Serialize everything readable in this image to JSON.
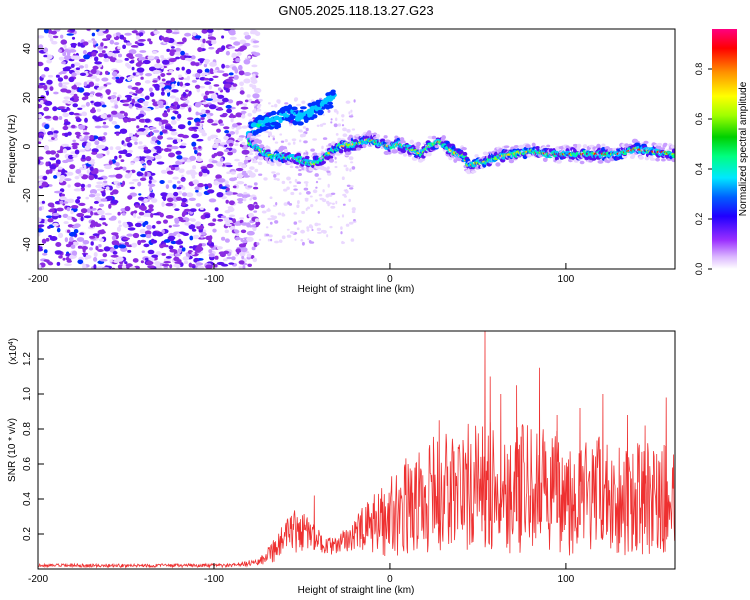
{
  "title": "GN05.2025.118.13.27.G23",
  "chart_data": [
    {
      "type": "heatmap",
      "title": "GN05.2025.118.13.27.G23",
      "xlabel": "Height of straight line (km)",
      "ylabel": "Frequency (Hz)",
      "xlim": [
        -200,
        162
      ],
      "ylim": [
        -50,
        48
      ],
      "xticks": [
        -200,
        -100,
        0,
        100
      ],
      "xtick_labels": [
        "-200",
        "-100",
        "0",
        "100"
      ],
      "yticks": [
        40,
        20,
        0,
        -20,
        -40
      ],
      "ytick_labels": [
        "40",
        "20",
        "0",
        "-20",
        "-40"
      ],
      "colorbar": {
        "label": "Normalized spectral amplitude",
        "range": [
          0,
          0.96
        ],
        "ticks": [
          0.0,
          0.2,
          0.4,
          0.6,
          0.8
        ],
        "tick_labels": [
          "0.0",
          "0.2",
          "0.4",
          "0.6",
          "0.8"
        ],
        "colormap": "rainbow"
      },
      "ridge": {
        "x": [
          -80,
          -75,
          -68,
          -60,
          -52,
          -45,
          -40,
          -35,
          -28,
          -20,
          -12,
          -5,
          0,
          5,
          12,
          18,
          22,
          28,
          32,
          38,
          42,
          45,
          48,
          55,
          62,
          70,
          80,
          90,
          100,
          110,
          120,
          130,
          140,
          150,
          162
        ],
        "y": [
          2,
          -1,
          -4,
          -4,
          -5,
          -7,
          -6,
          -3,
          0,
          1,
          3,
          1,
          0,
          1,
          -1,
          -3,
          0,
          2,
          0,
          -3,
          -4,
          -8,
          -7,
          -6,
          -4,
          -3,
          -2,
          -3,
          -3,
          -3,
          -3,
          -3,
          -1,
          -2,
          -3
        ]
      },
      "upper_branch": {
        "x": [
          -80,
          -72,
          -64,
          -58,
          -52,
          -45,
          -38,
          -32
        ],
        "y": [
          6,
          10,
          11,
          14,
          12,
          14,
          17,
          20
        ]
      },
      "noise_region_x": [
        -200,
        -75
      ]
    },
    {
      "type": "line",
      "xlabel": "Height of straight line (km)",
      "ylabel": "SNR (10 * v/v)",
      "scale_note_base": "(x10",
      "scale_note_exp": "4",
      "scale_note_end": ")",
      "xlim": [
        -200,
        162
      ],
      "ylim": [
        0,
        1.36
      ],
      "xticks": [
        -200,
        -100,
        0,
        100
      ],
      "xtick_labels": [
        "-200",
        "-100",
        "0",
        "100"
      ],
      "yticks": [
        0.2,
        0.4,
        0.6,
        0.8,
        1.0,
        1.2
      ],
      "ytick_labels": [
        "0.2",
        "0.4",
        "0.6",
        "0.8",
        "1.0",
        "1.2"
      ],
      "color": "#ee3030",
      "envelope": {
        "x": [
          -200,
          -90,
          -75,
          -70,
          -65,
          -60,
          -55,
          -50,
          -45,
          -40,
          -35,
          -30,
          -25,
          -20,
          -15,
          -10,
          -5,
          0,
          5,
          10,
          15,
          20,
          25,
          30,
          35,
          40,
          45,
          50,
          55,
          60,
          65,
          70,
          75,
          80,
          85,
          90,
          95,
          100,
          105,
          110,
          115,
          120,
          125,
          130,
          135,
          140,
          145,
          150,
          155,
          162
        ],
        "base": [
          0.02,
          0.02,
          0.04,
          0.08,
          0.12,
          0.17,
          0.2,
          0.22,
          0.2,
          0.16,
          0.13,
          0.13,
          0.17,
          0.2,
          0.22,
          0.25,
          0.28,
          0.3,
          0.34,
          0.36,
          0.38,
          0.4,
          0.42,
          0.43,
          0.45,
          0.45,
          0.46,
          0.47,
          0.46,
          0.46,
          0.46,
          0.45,
          0.46,
          0.46,
          0.45,
          0.44,
          0.44,
          0.43,
          0.42,
          0.42,
          0.41,
          0.42,
          0.42,
          0.4,
          0.41,
          0.4,
          0.4,
          0.4,
          0.4,
          0.4
        ],
        "amp": [
          0.01,
          0.01,
          0.02,
          0.05,
          0.08,
          0.1,
          0.14,
          0.12,
          0.08,
          0.06,
          0.05,
          0.05,
          0.07,
          0.1,
          0.14,
          0.17,
          0.2,
          0.24,
          0.26,
          0.28,
          0.3,
          0.32,
          0.34,
          0.36,
          0.37,
          0.38,
          0.38,
          0.38,
          0.38,
          0.38,
          0.37,
          0.37,
          0.37,
          0.36,
          0.36,
          0.36,
          0.35,
          0.35,
          0.35,
          0.34,
          0.34,
          0.34,
          0.33,
          0.33,
          0.33,
          0.33,
          0.32,
          0.32,
          0.32,
          0.32
        ]
      },
      "peaks": {
        "x": [
          -43,
          28,
          54,
          57,
          63,
          72,
          85,
          95,
          108,
          121,
          135,
          145,
          157
        ],
        "y": [
          0.42,
          0.85,
          1.36,
          1.1,
          1.0,
          1.05,
          1.15,
          0.88,
          0.92,
          1.0,
          0.88,
          0.82,
          0.98
        ]
      }
    }
  ]
}
